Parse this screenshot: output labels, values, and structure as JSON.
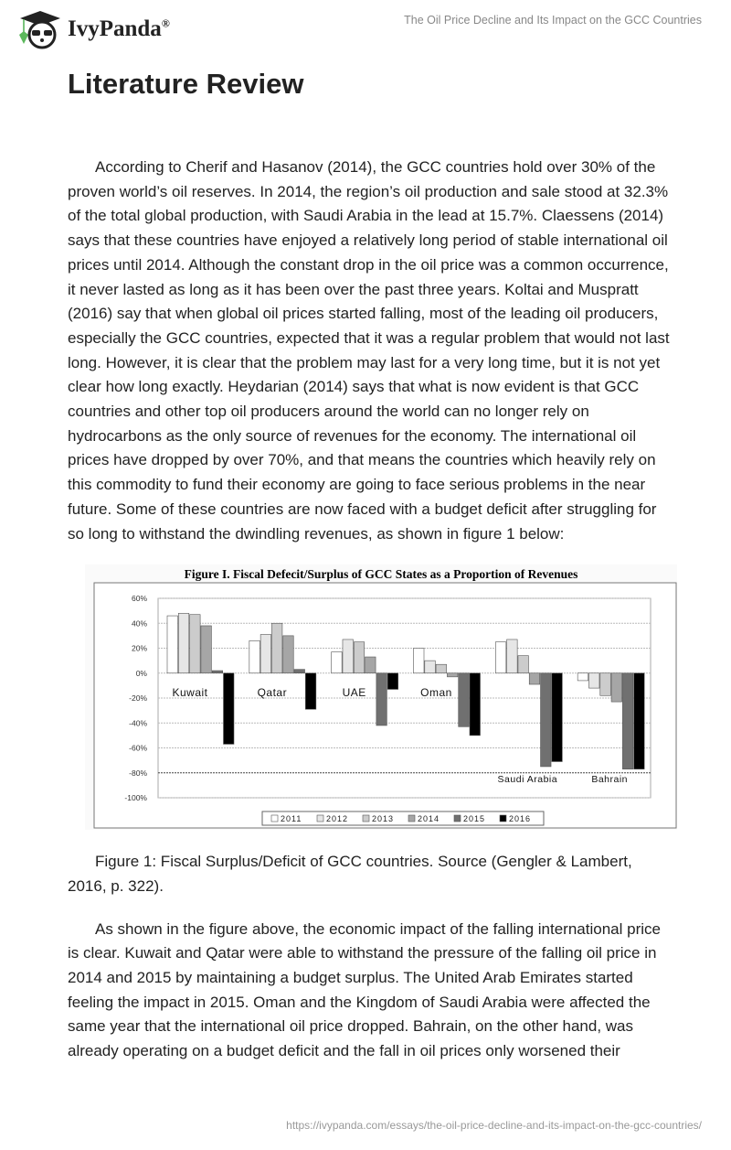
{
  "header": {
    "brand": "IvyPanda",
    "registered": "®",
    "doc_title": "The Oil Price Decline and Its Impact on the GCC Countries"
  },
  "page": {
    "heading": "Literature Review",
    "paragraph1": "According to Cherif and Hasanov (2014), the GCC countries hold over 30% of the proven world’s oil reserves. In 2014, the region’s oil production and sale stood at 32.3% of the total global production, with Saudi Arabia in the lead at 15.7%. Claessens (2014) says that these countries have enjoyed a relatively long period of stable international oil prices until 2014. Although the constant drop in the oil price was a common occurrence, it never lasted as long as it has been over the past three years. Koltai and Muspratt (2016) say that when global oil prices started falling, most of the leading oil producers, especially the GCC countries, expected that it was a regular problem that would not last long. However, it is clear that the problem may last for a very long time, but it is not yet clear how long exactly. Heydarian (2014) says that what is now evident is that GCC countries and other top oil producers around the world can no longer rely on hydrocarbons as the only source of revenues for the economy. The international oil prices have dropped by over 70%, and that means the countries which heavily rely on this commodity to fund their economy are going to face serious problems in the near future. Some of these countries are now faced with a budget deficit after struggling for so long to withstand the dwindling revenues, as shown in figure 1 below:",
    "caption": "Figure 1: Fiscal Surplus/Deficit of GCC countries. Source (Gengler & Lambert, 2016, p. 322).",
    "paragraph2": "As shown in the figure above, the economic impact of the falling international price is clear. Kuwait and Qatar were able to withstand the pressure of the falling oil price in 2014 and 2015 by maintaining a budget surplus. The United Arab Emirates started feeling the impact in 2015. Oman and the Kingdom of Saudi Arabia were affected the same year that the international oil price dropped. Bahrain, on the other hand, was already operating on a budget deficit and the fall in oil prices only worsened their"
  },
  "footer": {
    "url": "https://ivypanda.com/essays/the-oil-price-decline-and-its-impact-on-the-gcc-countries/"
  },
  "chart_data": {
    "type": "bar",
    "title": "Figure I. Fiscal Defecit/Surplus of GCC States as a Proportion of Revenues",
    "categories": [
      "Kuwait",
      "Qatar",
      "UAE",
      "Oman",
      "Saudi Arabia",
      "Bahrain"
    ],
    "yticks": [
      "60%",
      "40%",
      "20%",
      "0%",
      "-20%",
      "-40%",
      "-60%",
      "-80%",
      "-100%"
    ],
    "ylim": [
      -100,
      60
    ],
    "grid": true,
    "legend_position": "bottom",
    "series": [
      {
        "name": "2011",
        "color": "#ffffff",
        "values": [
          46,
          26,
          17,
          20,
          25,
          -6
        ]
      },
      {
        "name": "2012",
        "color": "#e6e6e6",
        "values": [
          48,
          31,
          27,
          10,
          27,
          -12
        ]
      },
      {
        "name": "2013",
        "color": "#cccccc",
        "values": [
          47,
          40,
          25,
          7,
          14,
          -18
        ]
      },
      {
        "name": "2014",
        "color": "#a6a6a6",
        "values": [
          38,
          30,
          13,
          -3,
          -9,
          -23
        ]
      },
      {
        "name": "2015",
        "color": "#707070",
        "values": [
          2,
          3,
          -42,
          -43,
          -75,
          -77
        ]
      },
      {
        "name": "2016",
        "color": "#000000",
        "values": [
          -57,
          -29,
          -13,
          -50,
          -71,
          -77
        ]
      }
    ]
  }
}
